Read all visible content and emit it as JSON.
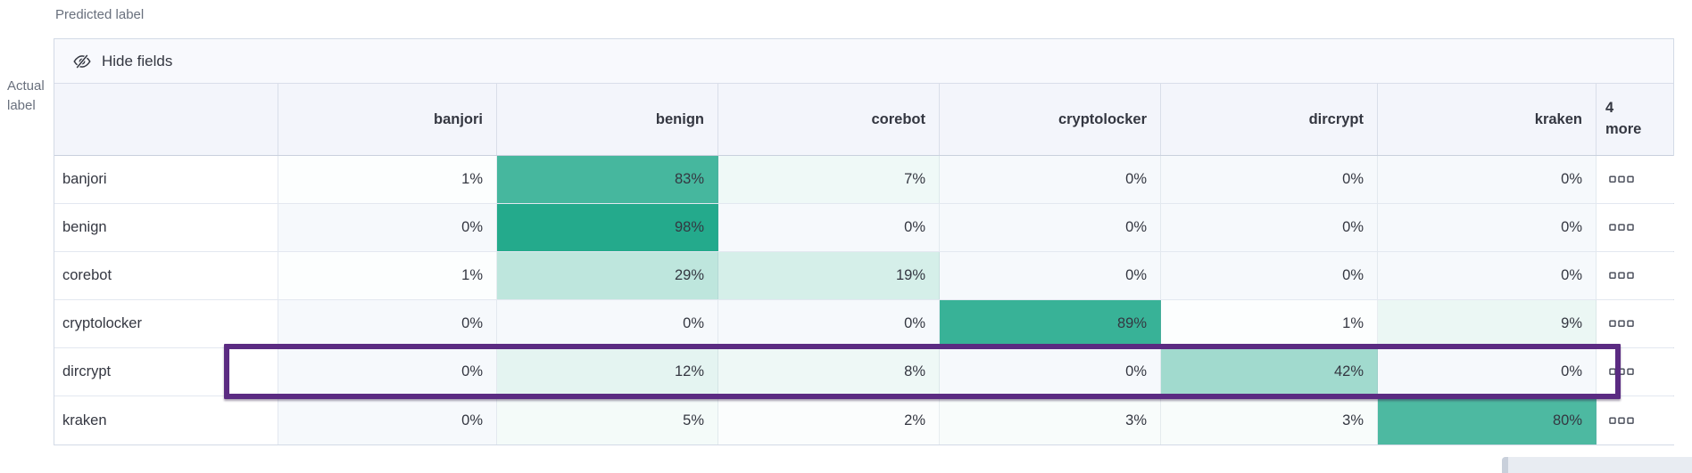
{
  "axes": {
    "predicted_label": "Predicted label",
    "actual_label": "Actual label"
  },
  "toolbar": {
    "hide_fields_label": "Hide fields"
  },
  "chart_data": {
    "type": "heatmap",
    "subtype": "confusion-matrix",
    "columns": [
      "banjori",
      "benign",
      "corebot",
      "cryptolocker",
      "dircrypt",
      "kraken"
    ],
    "more_columns_label": "4 more",
    "rows": [
      "banjori",
      "benign",
      "corebot",
      "cryptolocker",
      "dircrypt",
      "kraken"
    ],
    "values": [
      [
        1,
        83,
        7,
        0,
        0,
        0
      ],
      [
        0,
        98,
        0,
        0,
        0,
        0
      ],
      [
        1,
        29,
        19,
        0,
        0,
        0
      ],
      [
        0,
        0,
        0,
        89,
        1,
        9
      ],
      [
        0,
        12,
        8,
        0,
        42,
        0
      ],
      [
        0,
        5,
        2,
        3,
        3,
        80
      ]
    ],
    "value_suffix": "%",
    "highlighted_row": "dircrypt",
    "colors": {
      "heat_base": "#20A88A",
      "zero_cell_background": "#F6F9FC",
      "highlight_border": "#5B2B82"
    }
  }
}
